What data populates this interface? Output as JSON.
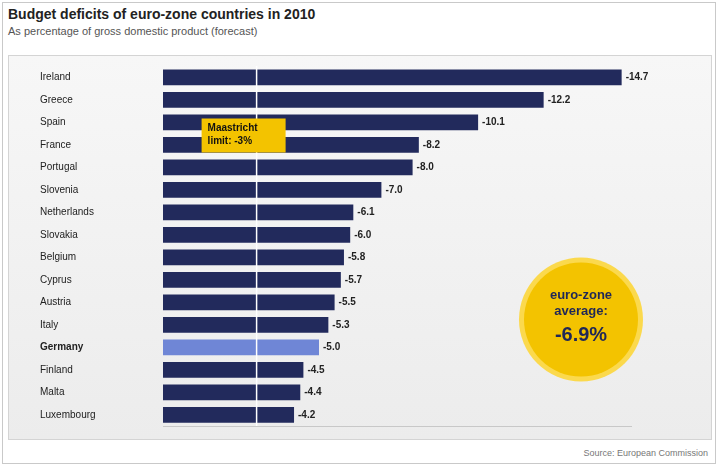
{
  "chart_data": {
    "type": "bar",
    "orientation": "horizontal",
    "title": "Budget deficits of euro-zone countries in 2010",
    "subtitle": "As percentage of gross domestic product (forecast)",
    "source": "Source: European Commission",
    "categories": [
      "Ireland",
      "Greece",
      "Spain",
      "France",
      "Portugal",
      "Slovenia",
      "Netherlands",
      "Slovakia",
      "Belgium",
      "Cyprus",
      "Austria",
      "Italy",
      "Germany",
      "Finland",
      "Malta",
      "Luxembourg"
    ],
    "values": [
      -14.7,
      -12.2,
      -10.1,
      -8.2,
      -8,
      -7,
      -6.1,
      -6,
      -5.8,
      -5.7,
      -5.5,
      -5.3,
      -5,
      -4.5,
      -4.4,
      -4.2
    ],
    "value_labels": [
      "-14.7",
      "-12.2",
      "-10.1",
      "-8.2",
      "-8.0",
      "-7.0",
      "-6.1",
      "-6.0",
      "-5.8",
      "-5.7",
      "-5.5",
      "-5.3",
      "-5.0",
      "-4.5",
      "-4.4",
      "-4.2"
    ],
    "color": "#222a5c",
    "colors": [
      "#222a5c",
      "#222a5c",
      "#222a5c",
      "#222a5c",
      "#222a5c",
      "#222a5c",
      "#222a5c",
      "#222a5c",
      "#222a5c",
      "#222a5c",
      "#222a5c",
      "#222a5c",
      "#6f86d6",
      "#222a5c",
      "#222a5c",
      "#222a5c"
    ],
    "xlim": [
      -15,
      0
    ],
    "data_labels": true,
    "tick_labels": "y",
    "grid": false,
    "annotations": [
      {
        "text": "Maastricht limit: -3%",
        "value": -3
      },
      {
        "text": "euro-zone average:",
        "value": -6.9,
        "value_label": "-6.9%"
      }
    ]
  }
}
